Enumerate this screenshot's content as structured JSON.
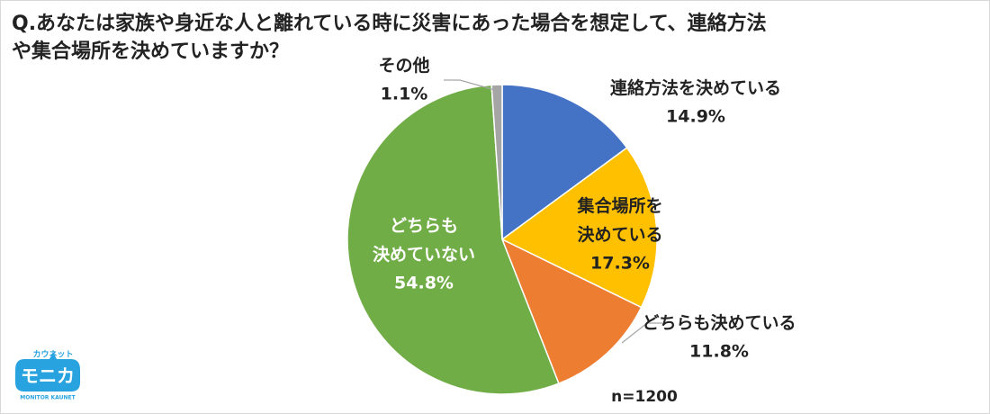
{
  "chart_data": {
    "type": "pie",
    "title": "Q.あなたは家族や身近な人と離れている時に災害にあった場合を想定して、連絡方法や集合場所を決めていますか？",
    "categories": [
      "連絡方法を決めている",
      "集合場所を\n決めている",
      "どちらも決めている",
      "どちらも\n決めていない",
      "その他"
    ],
    "values": [
      14.9,
      17.3,
      11.8,
      54.8,
      1.1
    ],
    "value_labels": [
      "14.9%",
      "17.3%",
      "11.8%",
      "54.8%",
      "1.1%"
    ],
    "colors": [
      "#4472c4",
      "#ffc000",
      "#ed7d31",
      "#70ad47",
      "#a5a5a5"
    ],
    "note": "n=1200"
  },
  "logo": {
    "top": "カウネット",
    "name": "モニカ",
    "sub": "MONITOR KAUNET"
  }
}
